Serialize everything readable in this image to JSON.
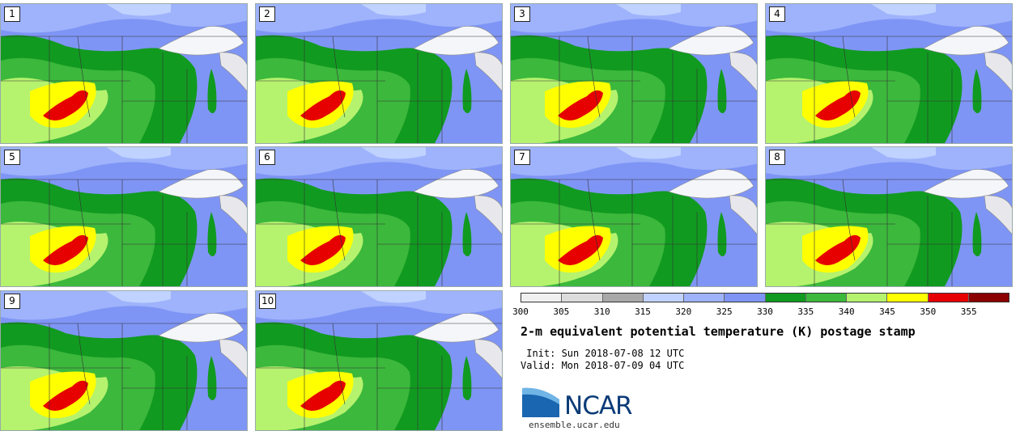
{
  "figure": {
    "title": "2-m equivalent potential temperature (K) postage stamp",
    "init": " Init: Sun 2018-07-08 12 UTC",
    "valid": "Valid: Mon 2018-07-09 04 UTC",
    "logo_text": "NCAR",
    "website": "ensemble.ucar.edu"
  },
  "colorbar": {
    "ticks": [
      "300",
      "305",
      "310",
      "315",
      "320",
      "325",
      "330",
      "335",
      "340",
      "345",
      "350",
      "355"
    ],
    "colors": [
      "#f0f0f0",
      "#dcdcdc",
      "#a8a8a8",
      "#c0d2ff",
      "#9eb3fb",
      "#7f95f5",
      "#119a20",
      "#3cb83c",
      "#b5f26e",
      "#ffff00",
      "#e60000",
      "#8b0000"
    ]
  },
  "panels": [
    {
      "label": "1"
    },
    {
      "label": "2"
    },
    {
      "label": "3"
    },
    {
      "label": "4"
    },
    {
      "label": "5"
    },
    {
      "label": "6"
    },
    {
      "label": "7"
    },
    {
      "label": "8"
    },
    {
      "label": "9"
    },
    {
      "label": "10"
    }
  ]
}
